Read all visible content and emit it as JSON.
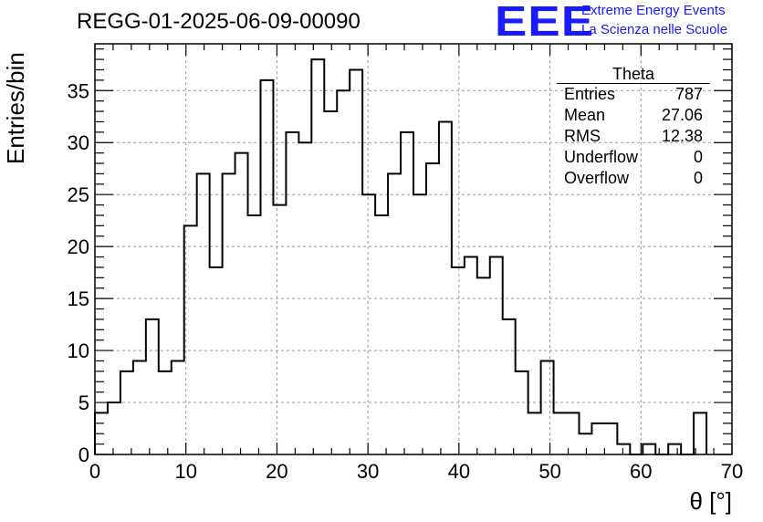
{
  "title": "REGG-01-2025-06-09-00090",
  "logo": {
    "mark": "EEE",
    "line1": "Extreme Energy Events",
    "line2": "La Scienza nelle Scuole",
    "color": "#1a1aff"
  },
  "stats": {
    "title": "Theta",
    "rows": [
      {
        "label": "Entries",
        "value": "787"
      },
      {
        "label": "Mean",
        "value": "27.06"
      },
      {
        "label": "RMS",
        "value": "12.38"
      },
      {
        "label": "Underflow",
        "value": "0"
      },
      {
        "label": "Overflow",
        "value": "0"
      }
    ]
  },
  "chart_data": {
    "type": "bar",
    "title": "REGG-01-2025-06-09-00090",
    "xlabel": "θ [°]",
    "ylabel": "Entries/bin",
    "xlim": [
      0,
      70
    ],
    "ylim": [
      0,
      39.5
    ],
    "xticks": [
      0,
      10,
      20,
      30,
      40,
      50,
      60,
      70
    ],
    "yticks": [
      0,
      5,
      10,
      15,
      20,
      25,
      30,
      35
    ],
    "grid": true,
    "bin_width": 1.4,
    "values": [
      4,
      5,
      8,
      9,
      13,
      8,
      9,
      22,
      27,
      18,
      27,
      29,
      23,
      36,
      24,
      31,
      30,
      38,
      33,
      35,
      37,
      25,
      23,
      27,
      31,
      25,
      28,
      32,
      18,
      19,
      17,
      19,
      13,
      8,
      4,
      9,
      4,
      4,
      2,
      3,
      3,
      1,
      0,
      1,
      0,
      1,
      0,
      4
    ]
  }
}
